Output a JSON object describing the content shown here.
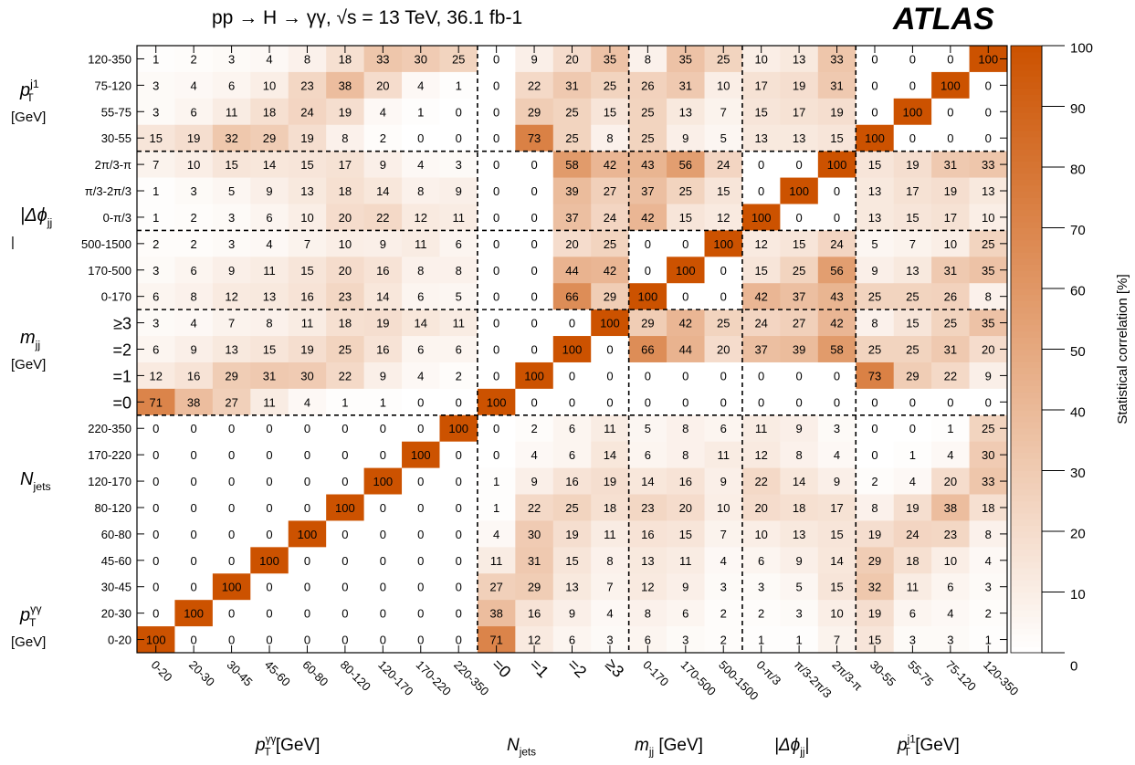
{
  "header": {
    "process_label": "pp → H → γγ,  √s = 13 TeV,  36.1 fb-1",
    "experiment_label": "ATLAS"
  },
  "chart_data": {
    "type": "heatmap",
    "title": "",
    "colorbar": {
      "label": "Statistical correlation [%]",
      "ticks": [
        "0",
        "10",
        "20",
        "30",
        "40",
        "50",
        "60",
        "70",
        "80",
        "90",
        "100"
      ],
      "range": [
        0,
        100
      ],
      "color_min": "#ffffff",
      "color_max": "#cc5200"
    },
    "x_tick_labels": [
      "0-20",
      "20-30",
      "30-45",
      "45-60",
      "60-80",
      "80-120",
      "120-170",
      "170-220",
      "220-350",
      "=0",
      "=1",
      "=2",
      "≥3",
      "0-170",
      "170-500",
      "500-1500",
      "0-π/3",
      "π/3-2π/3",
      "2π/3-π",
      "30-55",
      "55-75",
      "75-120",
      "120-350"
    ],
    "x_group_labels": [
      {
        "main": "p",
        "sub": "T",
        "sup": "γγ",
        "suffix": " [GeV]"
      },
      {
        "main": "N",
        "sub": "jets",
        "sup": "",
        "suffix": ""
      },
      {
        "main": "m",
        "sub": "jj",
        "sup": "",
        "suffix": " [GeV]"
      },
      {
        "main": "|Δϕ",
        "sub": "jj",
        "sup": "",
        "suffix": "|"
      },
      {
        "main": "p",
        "sub": "T",
        "sup": "j1",
        "suffix": " [GeV]"
      }
    ],
    "y_tick_labels": [
      "120-350",
      "75-120",
      "55-75",
      "30-55",
      "2π/3-π",
      "π/3-2π/3",
      "0-π/3",
      "500-1500",
      "170-500",
      "0-170",
      "≥3",
      "=2",
      "=1",
      "=0",
      "220-350",
      "170-220",
      "120-170",
      "80-120",
      "60-80",
      "45-60",
      "30-45",
      "20-30",
      "0-20"
    ],
    "y_group_labels": [
      {
        "main": "p",
        "sub": "T",
        "sup": "j1",
        "unit": "[GeV]"
      },
      {
        "main": "|Δϕ",
        "sub": "jj",
        "sup": "",
        "unit": "|"
      },
      {
        "main": "m",
        "sub": "jj",
        "sup": "",
        "unit": "[GeV]"
      },
      {
        "main": "N",
        "sub": "jets",
        "sup": "",
        "unit": ""
      },
      {
        "main": "p",
        "sub": "T",
        "sup": "γγ",
        "unit": "[GeV]"
      }
    ],
    "values": [
      [
        1,
        2,
        3,
        4,
        8,
        18,
        33,
        30,
        25,
        0,
        9,
        20,
        35,
        8,
        35,
        25,
        10,
        13,
        33,
        0,
        0,
        0,
        100
      ],
      [
        3,
        4,
        6,
        10,
        23,
        38,
        20,
        4,
        1,
        0,
        22,
        31,
        25,
        26,
        31,
        10,
        17,
        19,
        31,
        0,
        0,
        100,
        0
      ],
      [
        3,
        6,
        11,
        18,
        24,
        19,
        4,
        1,
        0,
        0,
        29,
        25,
        15,
        25,
        13,
        7,
        15,
        17,
        19,
        0,
        100,
        0,
        0
      ],
      [
        15,
        19,
        32,
        29,
        19,
        8,
        2,
        0,
        0,
        0,
        73,
        25,
        8,
        25,
        9,
        5,
        13,
        13,
        15,
        100,
        0,
        0,
        0
      ],
      [
        7,
        10,
        15,
        14,
        15,
        17,
        9,
        4,
        3,
        0,
        0,
        58,
        42,
        43,
        56,
        24,
        0,
        0,
        100,
        15,
        19,
        31,
        33
      ],
      [
        1,
        3,
        5,
        9,
        13,
        18,
        14,
        8,
        9,
        0,
        0,
        39,
        27,
        37,
        25,
        15,
        0,
        100,
        0,
        13,
        17,
        19,
        13
      ],
      [
        1,
        2,
        3,
        6,
        10,
        20,
        22,
        12,
        11,
        0,
        0,
        37,
        24,
        42,
        15,
        12,
        100,
        0,
        0,
        13,
        15,
        17,
        10
      ],
      [
        2,
        2,
        3,
        4,
        7,
        10,
        9,
        11,
        6,
        0,
        0,
        20,
        25,
        0,
        0,
        100,
        12,
        15,
        24,
        5,
        7,
        10,
        25
      ],
      [
        3,
        6,
        9,
        11,
        15,
        20,
        16,
        8,
        8,
        0,
        0,
        44,
        42,
        0,
        100,
        0,
        15,
        25,
        56,
        9,
        13,
        31,
        35
      ],
      [
        6,
        8,
        12,
        13,
        16,
        23,
        14,
        6,
        5,
        0,
        0,
        66,
        29,
        100,
        0,
        0,
        42,
        37,
        43,
        25,
        25,
        26,
        8
      ],
      [
        3,
        4,
        7,
        8,
        11,
        18,
        19,
        14,
        11,
        0,
        0,
        0,
        100,
        29,
        42,
        25,
        24,
        27,
        42,
        8,
        15,
        25,
        35
      ],
      [
        6,
        9,
        13,
        15,
        19,
        25,
        16,
        6,
        6,
        0,
        0,
        100,
        0,
        66,
        44,
        20,
        37,
        39,
        58,
        25,
        25,
        31,
        20
      ],
      [
        12,
        16,
        29,
        31,
        30,
        22,
        9,
        4,
        2,
        0,
        100,
        0,
        0,
        0,
        0,
        0,
        0,
        0,
        0,
        73,
        29,
        22,
        9
      ],
      [
        71,
        38,
        27,
        11,
        4,
        1,
        1,
        0,
        0,
        100,
        0,
        0,
        0,
        0,
        0,
        0,
        0,
        0,
        0,
        0,
        0,
        0,
        0
      ],
      [
        0,
        0,
        0,
        0,
        0,
        0,
        0,
        0,
        100,
        0,
        2,
        6,
        11,
        5,
        8,
        6,
        11,
        9,
        3,
        0,
        0,
        1,
        25
      ],
      [
        0,
        0,
        0,
        0,
        0,
        0,
        0,
        100,
        0,
        0,
        4,
        6,
        14,
        6,
        8,
        11,
        12,
        8,
        4,
        0,
        1,
        4,
        30
      ],
      [
        0,
        0,
        0,
        0,
        0,
        0,
        100,
        0,
        0,
        1,
        9,
        16,
        19,
        14,
        16,
        9,
        22,
        14,
        9,
        2,
        4,
        20,
        33
      ],
      [
        0,
        0,
        0,
        0,
        0,
        100,
        0,
        0,
        0,
        1,
        22,
        25,
        18,
        23,
        20,
        10,
        20,
        18,
        17,
        8,
        19,
        38,
        18
      ],
      [
        0,
        0,
        0,
        0,
        100,
        0,
        0,
        0,
        0,
        4,
        30,
        19,
        11,
        16,
        15,
        7,
        10,
        13,
        15,
        19,
        24,
        23,
        8
      ],
      [
        0,
        0,
        0,
        100,
        0,
        0,
        0,
        0,
        0,
        11,
        31,
        15,
        8,
        13,
        11,
        4,
        6,
        9,
        14,
        29,
        18,
        10,
        4
      ],
      [
        0,
        0,
        100,
        0,
        0,
        0,
        0,
        0,
        0,
        27,
        29,
        13,
        7,
        12,
        9,
        3,
        3,
        5,
        15,
        32,
        11,
        6,
        3
      ],
      [
        0,
        100,
        0,
        0,
        0,
        0,
        0,
        0,
        0,
        38,
        16,
        9,
        4,
        8,
        6,
        2,
        2,
        3,
        10,
        19,
        6,
        4,
        2
      ],
      [
        100,
        0,
        0,
        0,
        0,
        0,
        0,
        0,
        0,
        71,
        12,
        6,
        3,
        6,
        3,
        2,
        1,
        1,
        7,
        15,
        3,
        3,
        1
      ]
    ]
  }
}
